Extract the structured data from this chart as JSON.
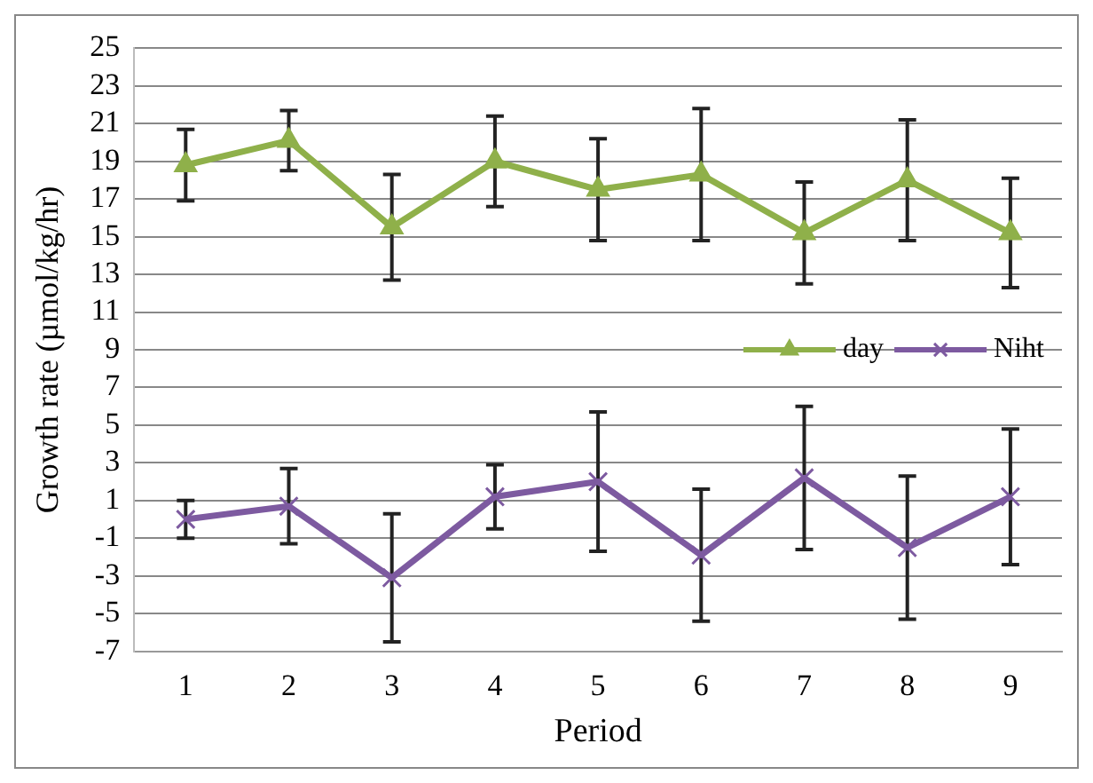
{
  "chart_data": {
    "type": "line",
    "xlabel": "Period",
    "ylabel": "Growth rate (µmol/kg/hr)",
    "categories": [
      "1",
      "2",
      "3",
      "4",
      "5",
      "6",
      "7",
      "8",
      "9"
    ],
    "series": [
      {
        "name": "day",
        "color": "#8fb04a",
        "marker": "triangle",
        "values": [
          18.8,
          20.1,
          15.5,
          19.0,
          17.5,
          18.3,
          15.2,
          18.0,
          15.2
        ],
        "errors": [
          1.9,
          1.6,
          2.8,
          2.4,
          2.7,
          3.5,
          2.7,
          3.2,
          2.9
        ]
      },
      {
        "name": "Niht",
        "color": "#7d5aa0",
        "marker": "cross",
        "values": [
          0,
          0.7,
          -3.1,
          1.2,
          2.0,
          -1.9,
          2.2,
          -1.5,
          1.2
        ],
        "errors": [
          1,
          2,
          3.4,
          1.7,
          3.7,
          3.5,
          3.8,
          3.8,
          3.6
        ]
      }
    ],
    "ylim": [
      -7,
      25
    ],
    "yticks": [
      -7,
      -5,
      -3,
      -1,
      1,
      3,
      5,
      7,
      9,
      11,
      13,
      15,
      17,
      19,
      21,
      23,
      25
    ],
    "grid": "y",
    "legend": "right",
    "line_style": "solid"
  }
}
